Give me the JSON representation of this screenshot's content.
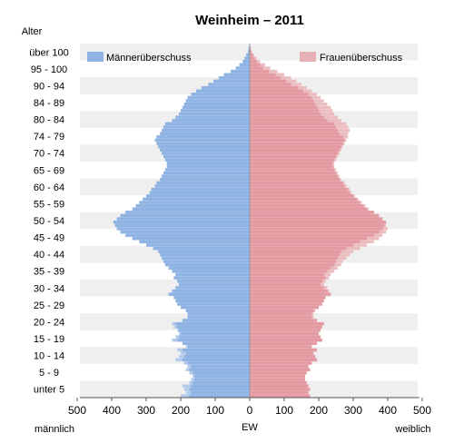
{
  "chart_data": {
    "type": "bar",
    "orientation": "horizontal",
    "title": "Weinheim – 2011",
    "y_axis_title": "Alter",
    "xlabel": "EW",
    "left_label": "männlich",
    "right_label": "weiblich",
    "x_ticks": [
      500,
      400,
      300,
      200,
      100,
      0,
      100,
      200,
      300,
      400,
      500
    ],
    "xlim": [
      -500,
      500
    ],
    "age_group_labels": [
      "unter 5",
      "5 - 9",
      "10 - 14",
      "15 - 19",
      "20 - 24",
      "25 - 29",
      "30 - 34",
      "35 - 39",
      "40 - 44",
      "45 - 49",
      "50 - 54",
      "55 - 59",
      "60 - 64",
      "65 - 69",
      "70 - 74",
      "74 - 79",
      "80 - 84",
      "84 - 89",
      "90 - 94",
      "95 - 100",
      "über 100"
    ],
    "legend": [
      "Männerüberschuss",
      "Frauenüberschuss"
    ],
    "legend_placement": "top",
    "grid": "alternating row bands",
    "series": [
      {
        "name": "männlich",
        "color": "#8fb3e3",
        "values": [
          200,
          185,
          190,
          195,
          175,
          170,
          165,
          175,
          185,
          180,
          190,
          215,
          205,
          200,
          210,
          185,
          195,
          225,
          215,
          205,
          210,
          220,
          225,
          195,
          180,
          180,
          185,
          200,
          210,
          215,
          220,
          235,
          225,
          215,
          205,
          210,
          220,
          215,
          225,
          235,
          245,
          250,
          255,
          260,
          265,
          280,
          300,
          320,
          340,
          360,
          375,
          385,
          390,
          395,
          385,
          375,
          360,
          340,
          330,
          320,
          310,
          300,
          290,
          285,
          275,
          270,
          260,
          255,
          250,
          245,
          240,
          240,
          245,
          250,
          255,
          260,
          265,
          270,
          275,
          270,
          260,
          255,
          250,
          245,
          225,
          215,
          205,
          200,
          195,
          190,
          185,
          180,
          170,
          155,
          140,
          120,
          105,
          90,
          75,
          55,
          40,
          30,
          20,
          15,
          10,
          5,
          3,
          1
        ]
      },
      {
        "name": "weiblich",
        "color": "#e39aa0",
        "values": [
          175,
          170,
          175,
          170,
          165,
          160,
          160,
          165,
          175,
          170,
          180,
          195,
          190,
          185,
          195,
          180,
          195,
          210,
          205,
          200,
          205,
          210,
          215,
          195,
          185,
          185,
          190,
          200,
          210,
          215,
          220,
          235,
          230,
          225,
          215,
          220,
          230,
          235,
          245,
          255,
          265,
          270,
          280,
          290,
          300,
          320,
          340,
          360,
          375,
          385,
          395,
          400,
          395,
          395,
          385,
          375,
          360,
          345,
          335,
          325,
          315,
          305,
          295,
          290,
          280,
          275,
          265,
          260,
          255,
          250,
          245,
          245,
          250,
          255,
          260,
          265,
          270,
          275,
          280,
          285,
          285,
          290,
          285,
          280,
          265,
          255,
          245,
          240,
          235,
          225,
          215,
          205,
          195,
          180,
          165,
          150,
          135,
          120,
          100,
          80,
          60,
          45,
          30,
          20,
          12,
          6,
          3,
          1
        ]
      }
    ]
  }
}
